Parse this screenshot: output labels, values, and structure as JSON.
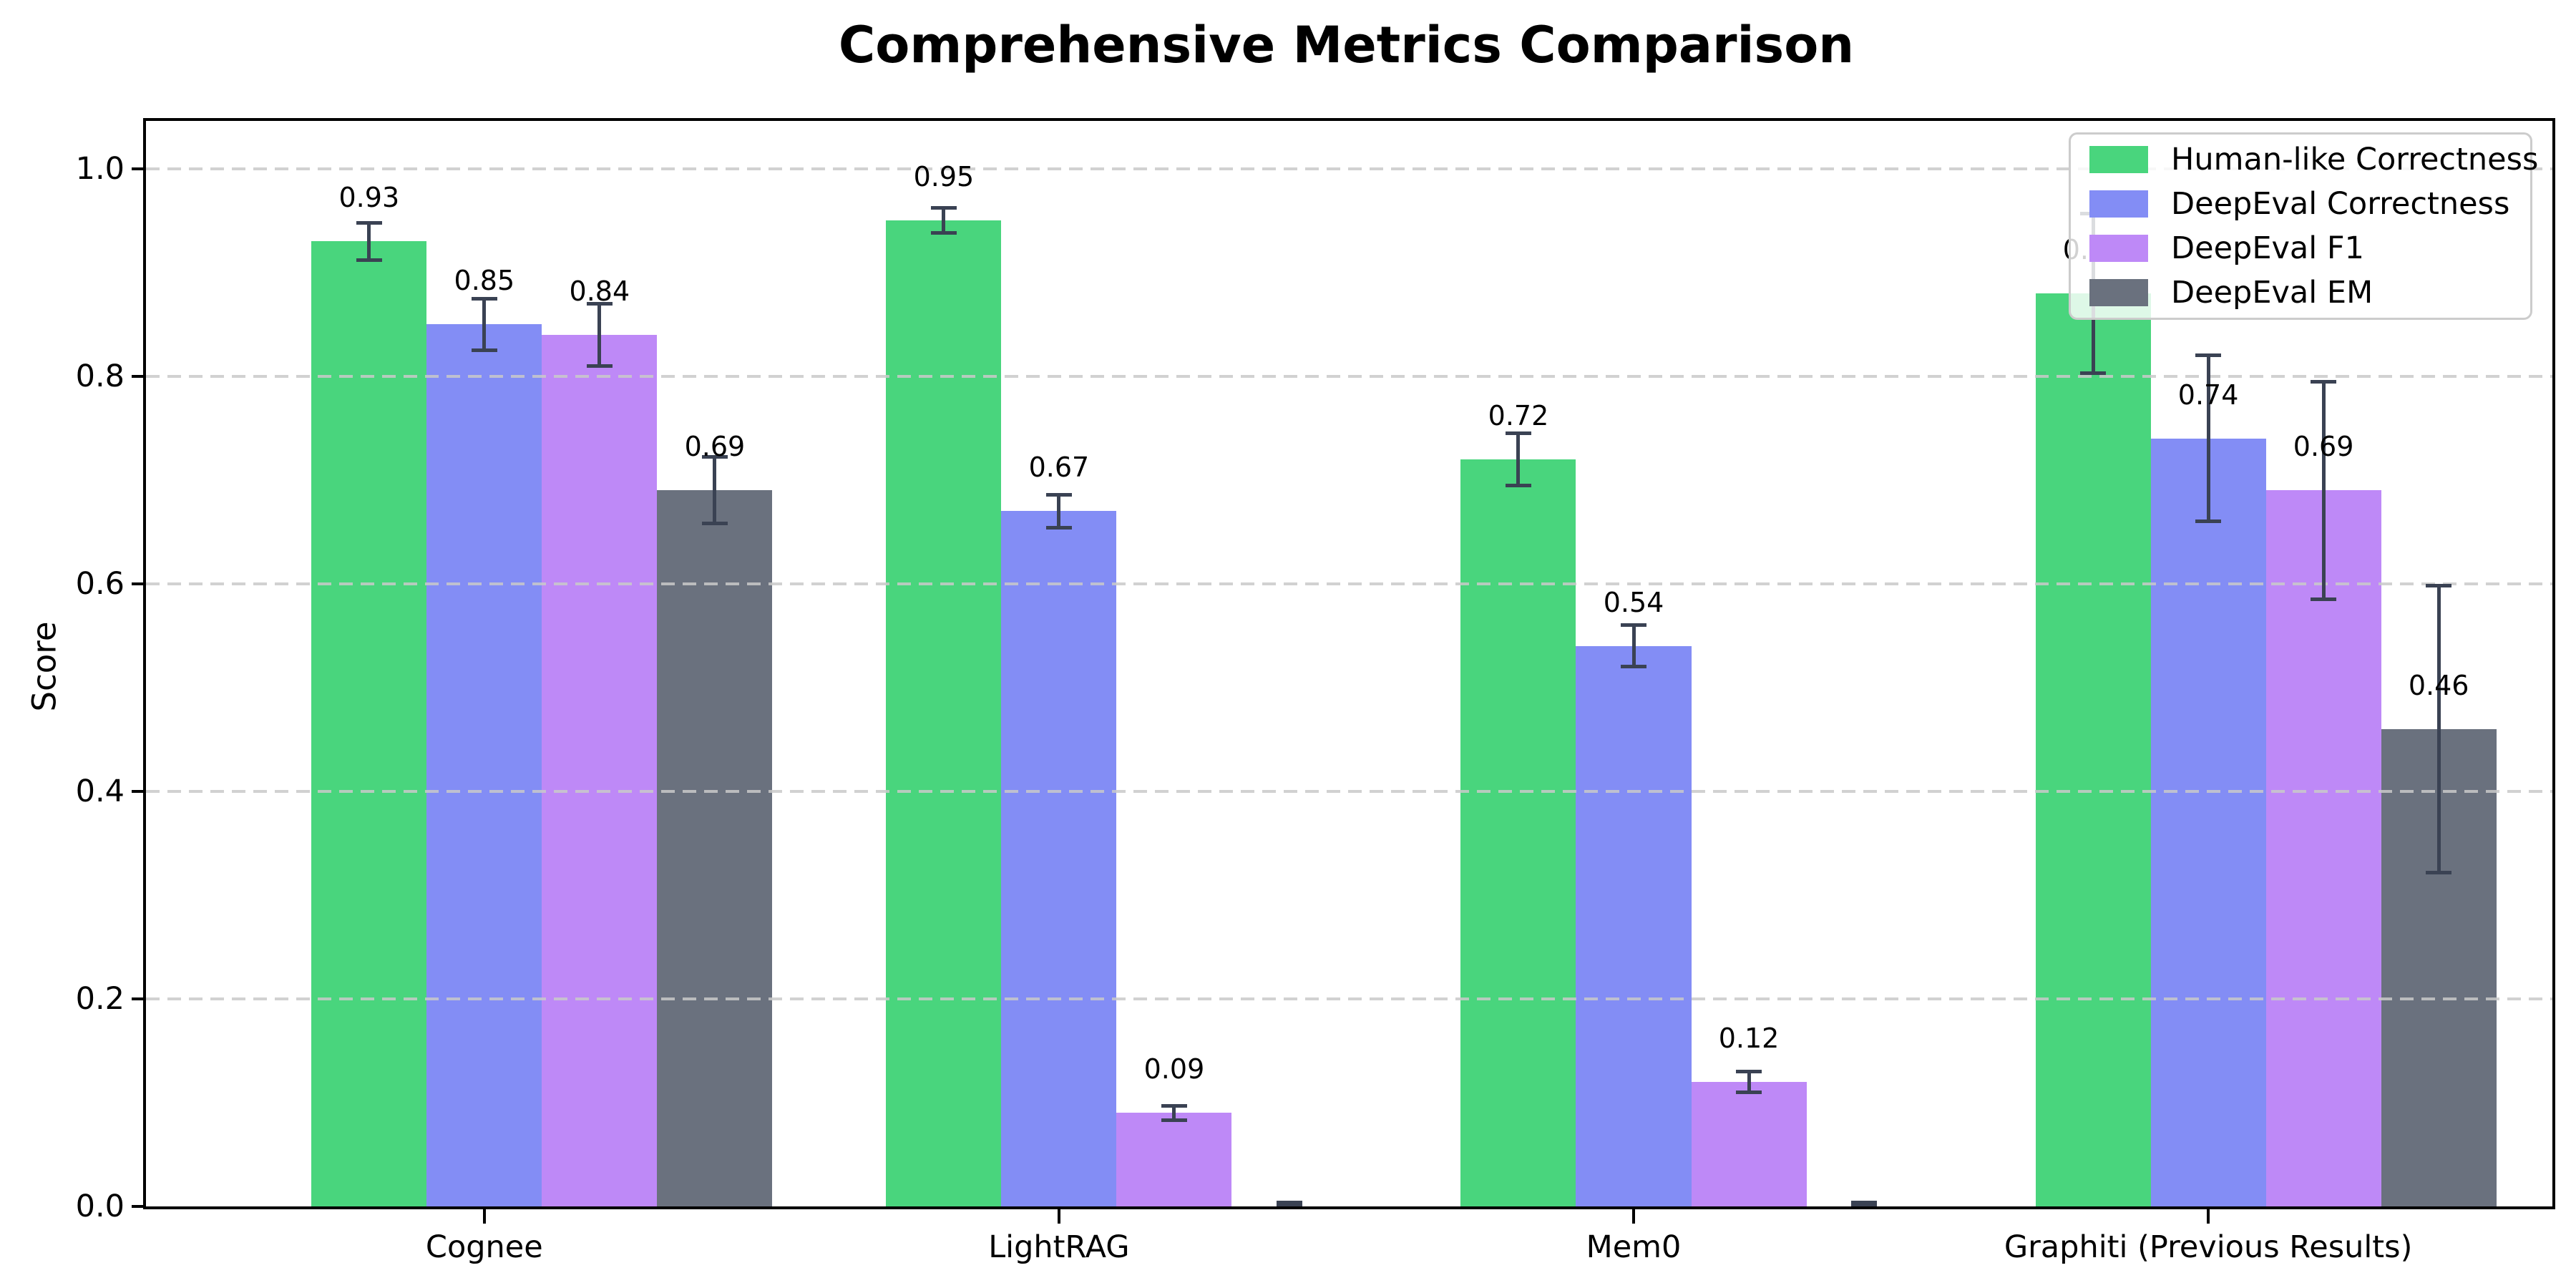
{
  "title": "Comprehensive Metrics Comparison",
  "chart_data": {
    "type": "bar",
    "title": "Comprehensive Metrics Comparison",
    "categories": [
      "Cognee",
      "LightRAG",
      "Mem0",
      "Graphiti (Previous Results)"
    ],
    "series": [
      {
        "name": "Human-like Correctness",
        "color": "#49d57d",
        "values": [
          0.93,
          0.95,
          0.72,
          0.88
        ],
        "errors": [
          0.018,
          0.012,
          0.025,
          0.077
        ]
      },
      {
        "name": "DeepEval Correctness",
        "color": "#838df5",
        "values": [
          0.85,
          0.67,
          0.54,
          0.74
        ],
        "errors": [
          0.025,
          0.016,
          0.02,
          0.08
        ]
      },
      {
        "name": "DeepEval F1",
        "color": "#be89f7",
        "values": [
          0.84,
          0.09,
          0.12,
          0.69
        ],
        "errors": [
          0.03,
          0.007,
          0.01,
          0.105
        ]
      },
      {
        "name": "DeepEval EM",
        "color": "#6a717e",
        "values": [
          0.69,
          0.0,
          0.0,
          0.46
        ],
        "errors": [
          0.032,
          0.004,
          0.004,
          0.138
        ]
      }
    ],
    "bar_value_labels": [
      [
        "0.93",
        "0.95",
        "0.72",
        "0.88"
      ],
      [
        "0.85",
        "0.67",
        "0.54",
        "0.74"
      ],
      [
        "0.84",
        "0.09",
        "0.12",
        "0.69"
      ],
      [
        "0.69",
        "",
        "",
        "0.46"
      ]
    ],
    "xlabel": "",
    "ylabel": "Score",
    "yticks": [
      "0.0",
      "0.2",
      "0.4",
      "0.6",
      "0.8",
      "1.0"
    ],
    "ylim": [
      0,
      1.046
    ],
    "grid": "horizontal-dashed",
    "legend_position": "upper-right"
  },
  "colors": {
    "error_bar": "#3a4253",
    "grid": "#c9c9c9",
    "axis": "#000000",
    "background": "#ffffff",
    "text": "#000000"
  }
}
